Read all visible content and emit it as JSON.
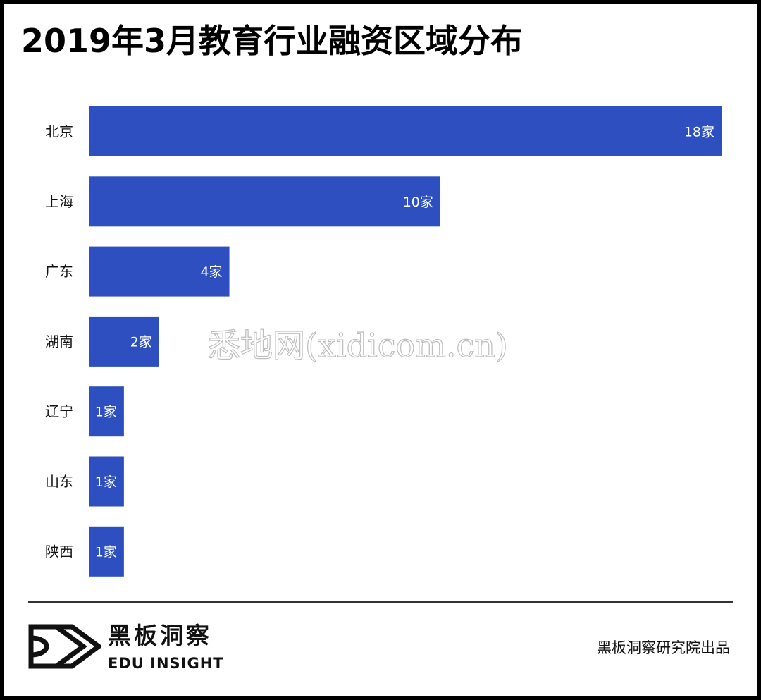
{
  "title": "2019年3月教育行业融资区域分布",
  "chart_data": {
    "type": "bar",
    "orientation": "horizontal",
    "categories": [
      "北京",
      "上海",
      "广东",
      "湖南",
      "辽宁",
      "山东",
      "陕西"
    ],
    "values": [
      18,
      10,
      4,
      2,
      1,
      1,
      1
    ],
    "data_labels": [
      "18家",
      "10家",
      "4家",
      "2家",
      "1家",
      "1家",
      "1家"
    ],
    "xlim": [
      0,
      18
    ],
    "grid": false,
    "legend": "none",
    "bar_color": "#2e4fbf",
    "label_color": "#ffffff"
  },
  "watermark": "悉地网(xidicom.cn)",
  "footer": {
    "logo_cn": "黑板洞察",
    "logo_en": "EDU INSIGHT",
    "source": "黑板洞察研究院出品"
  }
}
